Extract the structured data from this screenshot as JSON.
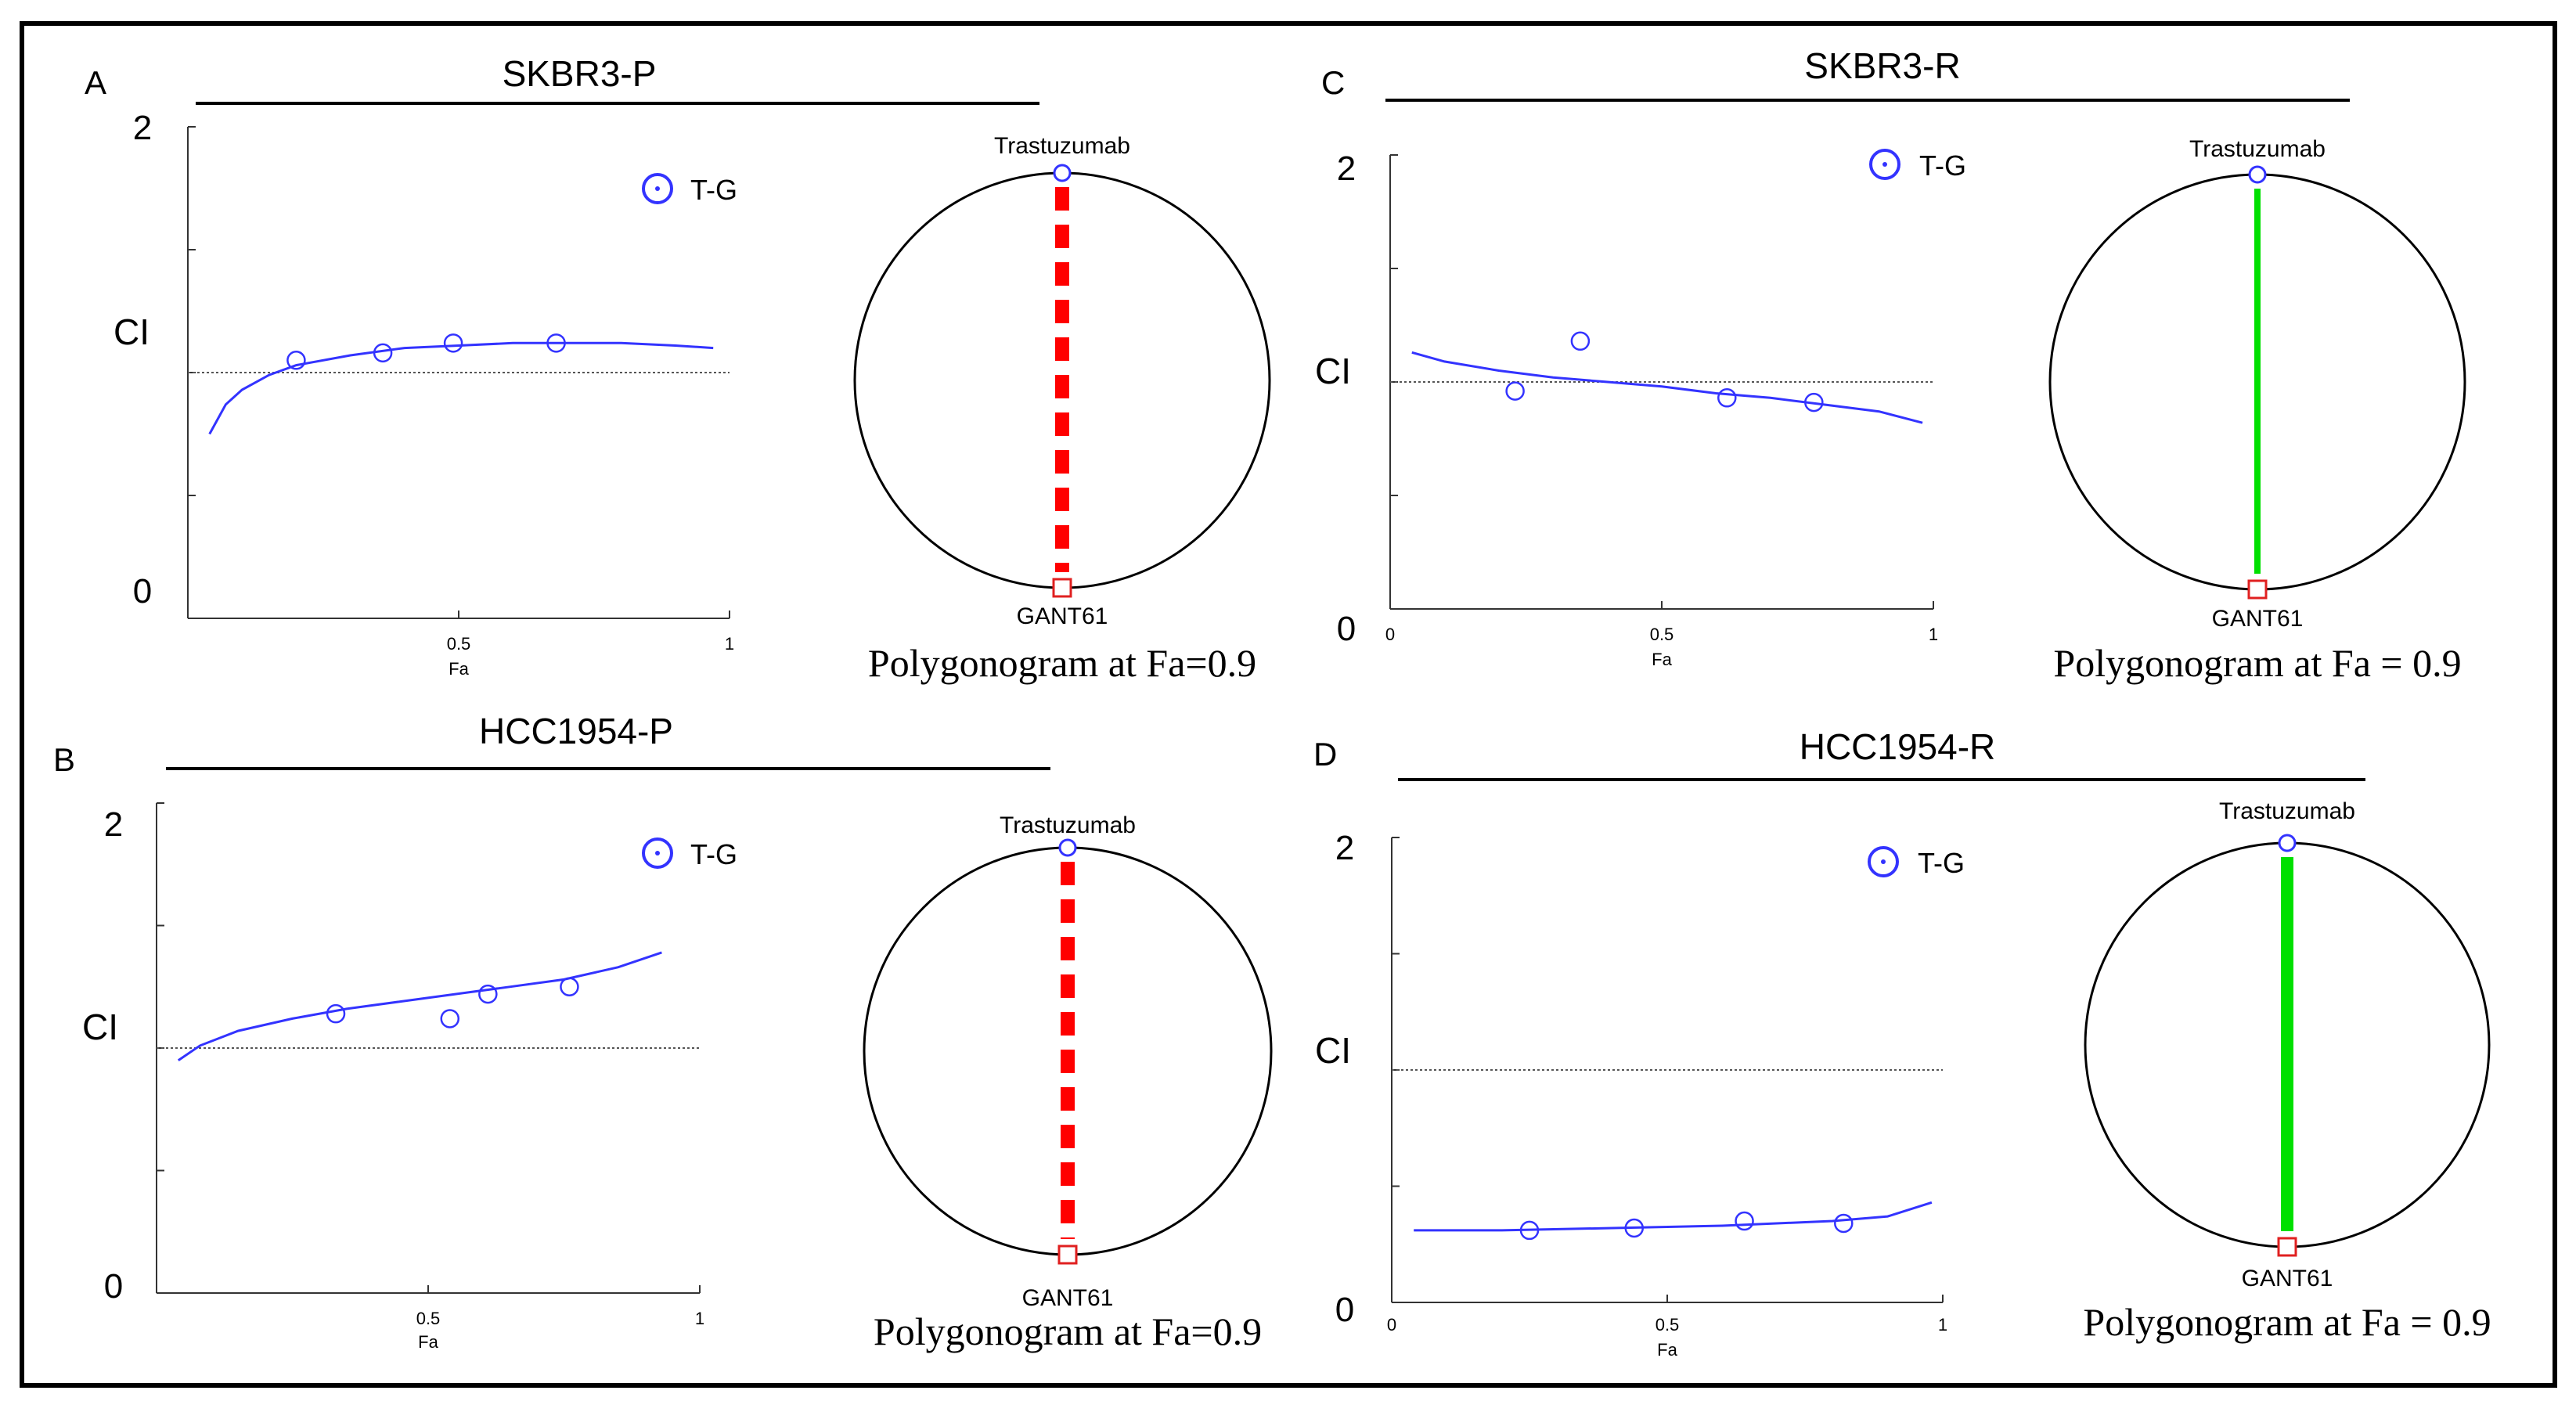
{
  "panels": [
    {
      "letter": "A",
      "title": "SKBR3-P",
      "chart_data": {
        "type": "scatter",
        "title": "SKBR3-P",
        "xlabel": "Fa",
        "ylabel": "CI",
        "xlim": [
          0,
          1
        ],
        "ylim": [
          0,
          2
        ],
        "x_tick_labels": [
          "0.5",
          "1"
        ],
        "y_tick_labels": [
          "2",
          "0"
        ],
        "reference_line_y": 1,
        "legend": "T-G",
        "series": [
          {
            "name": "T-G",
            "points": [
              [
                0.2,
                1.05
              ],
              [
                0.36,
                1.08
              ],
              [
                0.49,
                1.12
              ],
              [
                0.68,
                1.12
              ]
            ],
            "fit_curve": [
              [
                0.04,
                0.75
              ],
              [
                0.07,
                0.87
              ],
              [
                0.1,
                0.93
              ],
              [
                0.15,
                0.99
              ],
              [
                0.2,
                1.03
              ],
              [
                0.3,
                1.07
              ],
              [
                0.4,
                1.1
              ],
              [
                0.5,
                1.11
              ],
              [
                0.6,
                1.12
              ],
              [
                0.7,
                1.12
              ],
              [
                0.8,
                1.12
              ],
              [
                0.9,
                1.11
              ],
              [
                0.97,
                1.1
              ]
            ]
          }
        ]
      },
      "polygonogram": {
        "top_label": "Trastuzumab",
        "bottom_label": "GANT61",
        "caption": "Polygonogram at Fa=0.9",
        "line_style": "dashed",
        "line_color": "#ff0000",
        "thickness": "thick"
      }
    },
    {
      "letter": "C",
      "title": "SKBR3-R",
      "chart_data": {
        "type": "scatter",
        "title": "SKBR3-R",
        "xlabel": "Fa",
        "ylabel": "CI",
        "xlim": [
          0,
          1
        ],
        "ylim": [
          0,
          2
        ],
        "x_tick_labels": [
          "0",
          "0.5",
          "1"
        ],
        "y_tick_labels": [
          "2",
          "CI",
          "0"
        ],
        "reference_line_y": 1,
        "legend": "T-G",
        "series": [
          {
            "name": "T-G",
            "points": [
              [
                0.23,
                0.96
              ],
              [
                0.35,
                1.18
              ],
              [
                0.62,
                0.93
              ],
              [
                0.78,
                0.91
              ]
            ],
            "fit_curve": [
              [
                0.04,
                1.13
              ],
              [
                0.1,
                1.09
              ],
              [
                0.2,
                1.05
              ],
              [
                0.3,
                1.02
              ],
              [
                0.4,
                1.0
              ],
              [
                0.5,
                0.98
              ],
              [
                0.6,
                0.95
              ],
              [
                0.7,
                0.93
              ],
              [
                0.8,
                0.9
              ],
              [
                0.9,
                0.87
              ],
              [
                0.98,
                0.82
              ]
            ]
          }
        ]
      },
      "polygonogram": {
        "top_label": "Trastuzumab",
        "bottom_label": "GANT61",
        "caption": "Polygonogram at Fa = 0.9",
        "line_style": "solid",
        "line_color": "#00e000",
        "thickness": "thin"
      }
    },
    {
      "letter": "B",
      "title": "HCC1954-P",
      "chart_data": {
        "type": "scatter",
        "title": "HCC1954-P",
        "xlabel": "Fa",
        "ylabel": "CI",
        "xlim": [
          0,
          1
        ],
        "ylim": [
          0,
          2
        ],
        "x_tick_labels": [
          "0.5",
          "1"
        ],
        "y_tick_labels": [
          "2",
          "0"
        ],
        "reference_line_y": 1,
        "legend": "T-G",
        "series": [
          {
            "name": "T-G",
            "points": [
              [
                0.33,
                1.14
              ],
              [
                0.54,
                1.12
              ],
              [
                0.61,
                1.22
              ],
              [
                0.76,
                1.25
              ]
            ],
            "fit_curve": [
              [
                0.04,
                0.95
              ],
              [
                0.08,
                1.01
              ],
              [
                0.15,
                1.07
              ],
              [
                0.25,
                1.12
              ],
              [
                0.35,
                1.16
              ],
              [
                0.45,
                1.19
              ],
              [
                0.55,
                1.22
              ],
              [
                0.65,
                1.25
              ],
              [
                0.75,
                1.28
              ],
              [
                0.85,
                1.33
              ],
              [
                0.93,
                1.39
              ]
            ]
          }
        ]
      },
      "polygonogram": {
        "top_label": "Trastuzumab",
        "bottom_label": "GANT61",
        "caption": "Polygonogram at Fa=0.9",
        "line_style": "dashed",
        "line_color": "#ff0000",
        "thickness": "thick"
      }
    },
    {
      "letter": "D",
      "title": "HCC1954-R",
      "chart_data": {
        "type": "scatter",
        "title": "HCC1954-R",
        "xlabel": "Fa",
        "ylabel": "CI",
        "xlim": [
          0,
          1
        ],
        "ylim": [
          0,
          2
        ],
        "x_tick_labels": [
          "0",
          "0.5",
          "1"
        ],
        "y_tick_labels": [
          "2",
          "0"
        ],
        "reference_line_y": 1,
        "legend": "T-G",
        "series": [
          {
            "name": "T-G",
            "points": [
              [
                0.25,
                0.31
              ],
              [
                0.44,
                0.32
              ],
              [
                0.64,
                0.35
              ],
              [
                0.82,
                0.34
              ]
            ],
            "fit_curve": [
              [
                0.04,
                0.31
              ],
              [
                0.2,
                0.31
              ],
              [
                0.4,
                0.32
              ],
              [
                0.6,
                0.33
              ],
              [
                0.8,
                0.35
              ],
              [
                0.9,
                0.37
              ],
              [
                0.98,
                0.43
              ]
            ]
          }
        ]
      },
      "polygonogram": {
        "top_label": "Trastuzumab",
        "bottom_label": "GANT61",
        "caption": "Polygonogram at Fa = 0.9",
        "line_style": "solid",
        "line_color": "#00e000",
        "thickness": "thick"
      }
    }
  ],
  "colors": {
    "curve": "#3333ff",
    "marker": "#3333ff",
    "gant_marker": "#e02020",
    "axis": "#333333",
    "frame": "#000000"
  }
}
